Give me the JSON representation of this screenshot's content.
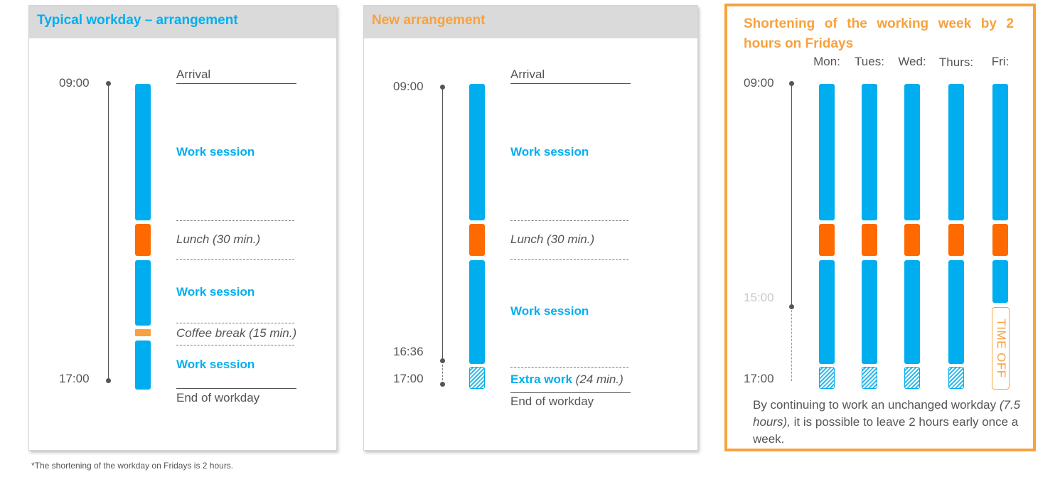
{
  "colors": {
    "work": "#00aeef",
    "lunch": "#ff6a00",
    "break": "#f7a23e",
    "title_typical": "#00aeef",
    "title_new": "#f7a23e",
    "title_short": "#f7a23e"
  },
  "typical": {
    "title": "Typical workday – arrangement",
    "time_start": "09:00",
    "time_end": "17:00",
    "arrival": "Arrival",
    "work1": "Work session",
    "lunch": "Lunch (30 min.)",
    "work2": "Work session",
    "coffee": "Coffee break (15 min.)",
    "work3": "Work session",
    "end": "End of workday"
  },
  "new": {
    "title": "New arrangement",
    "time_start": "09:00",
    "time_mid": "16:36",
    "time_end": "17:00",
    "arrival": "Arrival",
    "work1": "Work session",
    "lunch": "Lunch (30 min.)",
    "work2": "Work session",
    "extra_bold": "Extra work",
    "extra_rest": " (24 min.)",
    "end": "End of workday"
  },
  "short": {
    "title": "Shortening of the working week by 2 hours on Fridays",
    "days": [
      "Mon:",
      "Tues:",
      "Wed:",
      "Thurs:",
      "Fri:"
    ],
    "time_start": "09:00",
    "time_mid": "15:00",
    "time_end": "17:00",
    "time_off": "TIME OFF",
    "note_before": "By continuing to work an unchanged workday ",
    "note_em": "(7.5 hours),",
    "note_after": " it is possible to leave 2 hours early once a week."
  },
  "footnote": "*The shortening of the workday on Fridays is 2 hours."
}
